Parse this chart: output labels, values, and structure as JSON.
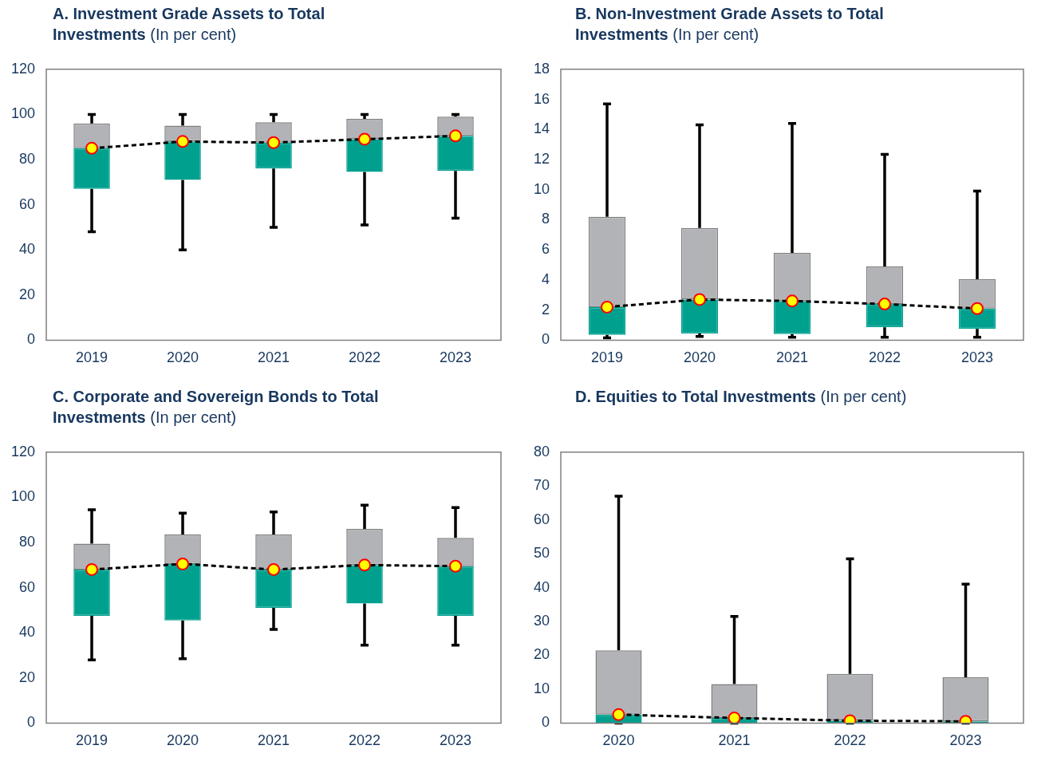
{
  "chart_data": [
    {
      "type": "box",
      "title": "A. Investment Grade Assets to Total Investments",
      "subtitle": "(In per cent)",
      "categories": [
        "2019",
        "2020",
        "2021",
        "2022",
        "2023"
      ],
      "ylim": [
        0,
        120
      ],
      "yticks": [
        0,
        20,
        40,
        60,
        80,
        100,
        120
      ],
      "grid": false,
      "legend": false,
      "series": [
        {
          "color": "#00a08f",
          "boxes": [
            {
              "low": 48,
              "q1": 67,
              "median": 85,
              "q3": 96,
              "high": 100
            },
            {
              "low": 40,
              "q1": 71,
              "median": 88,
              "q3": 95,
              "high": 100
            },
            {
              "low": 50,
              "q1": 76,
              "median": 87.5,
              "q3": 96.5,
              "high": 100
            },
            {
              "low": 51,
              "q1": 74.5,
              "median": 89,
              "q3": 98,
              "high": 100
            },
            {
              "low": 54,
              "q1": 75,
              "median": 90.5,
              "q3": 99,
              "high": 100
            }
          ]
        },
        {
          "type": "line",
          "color": "#000000",
          "marker": "circle",
          "line_style": "dashed",
          "values": [
            85,
            88,
            87.5,
            89,
            90.5
          ]
        }
      ]
    },
    {
      "type": "box",
      "title": "B. Non-Investment Grade Assets to Total Investments",
      "subtitle": "(In per cent)",
      "categories": [
        "2019",
        "2020",
        "2021",
        "2022",
        "2023"
      ],
      "ylim": [
        0,
        18
      ],
      "yticks": [
        0,
        2,
        4,
        6,
        8,
        10,
        12,
        14,
        16,
        18
      ],
      "grid": false,
      "legend": false,
      "series": [
        {
          "color": "#00a08f",
          "boxes": [
            {
              "low": 0.15,
              "q1": 0.35,
              "median": 2.2,
              "q3": 8.2,
              "high": 15.7
            },
            {
              "low": 0.25,
              "q1": 0.45,
              "median": 2.7,
              "q3": 7.45,
              "high": 14.3
            },
            {
              "low": 0.2,
              "q1": 0.4,
              "median": 2.6,
              "q3": 5.8,
              "high": 14.4
            },
            {
              "low": 0.2,
              "q1": 0.85,
              "median": 2.4,
              "q3": 4.9,
              "high": 12.35
            },
            {
              "low": 0.2,
              "q1": 0.75,
              "median": 2.1,
              "q3": 4.05,
              "high": 9.9
            }
          ]
        },
        {
          "type": "line",
          "color": "#000000",
          "marker": "circle",
          "line_style": "dashed",
          "values": [
            2.2,
            2.7,
            2.6,
            2.4,
            2.1
          ]
        }
      ]
    },
    {
      "type": "box",
      "title": "C. Corporate and Sovereign Bonds to Total Investments",
      "subtitle": "(In per cent)",
      "categories": [
        "2019",
        "2020",
        "2021",
        "2022",
        "2023"
      ],
      "ylim": [
        0,
        120
      ],
      "yticks": [
        0,
        20,
        40,
        60,
        80,
        100,
        120
      ],
      "grid": false,
      "legend": false,
      "series": [
        {
          "color": "#00a08f",
          "boxes": [
            {
              "low": 28,
              "q1": 47.5,
              "median": 68,
              "q3": 79.5,
              "high": 94.5
            },
            {
              "low": 28.5,
              "q1": 45.5,
              "median": 70.5,
              "q3": 83.5,
              "high": 93
            },
            {
              "low": 41.5,
              "q1": 51,
              "median": 68,
              "q3": 83.5,
              "high": 93.5
            },
            {
              "low": 34.5,
              "q1": 53,
              "median": 70,
              "q3": 86,
              "high": 96.5
            },
            {
              "low": 34.5,
              "q1": 47.5,
              "median": 69.5,
              "q3": 82,
              "high": 95.5
            }
          ]
        },
        {
          "type": "line",
          "color": "#000000",
          "marker": "circle",
          "line_style": "dashed",
          "values": [
            68,
            70.5,
            68,
            70,
            69.5
          ]
        }
      ]
    },
    {
      "type": "box",
      "title": "D. Equities to Total Investments",
      "subtitle": "(In per cent)",
      "categories": [
        "2020",
        "2021",
        "2022",
        "2023"
      ],
      "ylim": [
        0,
        80
      ],
      "yticks": [
        0,
        10,
        20,
        30,
        40,
        50,
        60,
        70,
        80
      ],
      "grid": false,
      "legend": false,
      "series": [
        {
          "color": "#00a08f",
          "boxes": [
            {
              "low": 0,
              "q1": 0,
              "median": 2.5,
              "q3": 21.5,
              "high": 67
            },
            {
              "low": 0,
              "q1": 0,
              "median": 1.5,
              "q3": 11.5,
              "high": 31.5
            },
            {
              "low": 0,
              "q1": 0,
              "median": 0.7,
              "q3": 14.5,
              "high": 48.5
            },
            {
              "low": 0,
              "q1": 0,
              "median": 0.5,
              "q3": 13.5,
              "high": 41
            }
          ]
        },
        {
          "type": "line",
          "color": "#000000",
          "marker": "circle",
          "line_style": "dashed",
          "values": [
            2.5,
            1.5,
            0.7,
            0.5
          ]
        }
      ]
    }
  ]
}
